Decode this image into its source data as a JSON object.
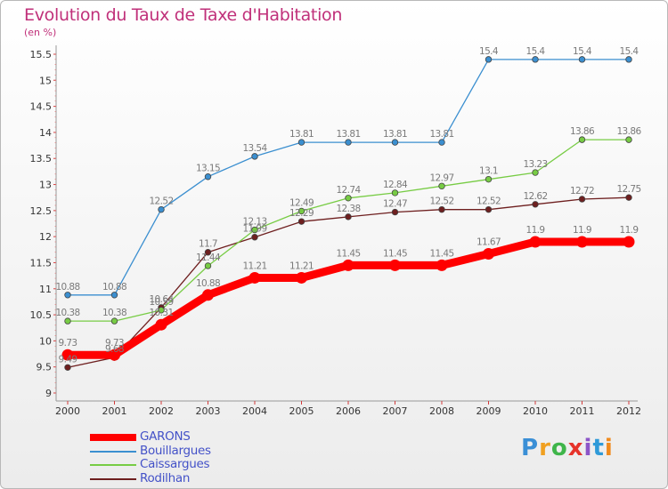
{
  "chart_data": {
    "type": "line",
    "title": "Evolution du Taux de Taxe d'Habitation",
    "subtitle": "(en %)",
    "x": [
      "2000",
      "2001",
      "2002",
      "2003",
      "2004",
      "2005",
      "2006",
      "2007",
      "2008",
      "2009",
      "2010",
      "2011",
      "2012"
    ],
    "ylim": [
      9,
      15.5
    ],
    "yticks": [
      "9",
      "9.5",
      "10",
      "10.5",
      "11",
      "11.5",
      "12",
      "12.5",
      "13",
      "13.5",
      "14",
      "14.5",
      "15",
      "15.5"
    ],
    "grid": false,
    "legend_placement": "bottom-left",
    "series": [
      {
        "name": "GARONS",
        "color": "#ff0000",
        "values": [
          9.73,
          9.73,
          10.31,
          10.88,
          11.21,
          11.21,
          11.45,
          11.45,
          11.45,
          11.67,
          11.9,
          11.9,
          11.9
        ],
        "labels": [
          "9.73",
          "9.73",
          "10.31",
          "10.88",
          "11.21",
          "11.21",
          "11.45",
          "11.45",
          "11.45",
          "11.67",
          "11.9",
          "11.9",
          "11.9"
        ]
      },
      {
        "name": "Bouillargues",
        "color": "#3b8fd0",
        "values": [
          10.88,
          10.88,
          12.52,
          13.15,
          13.54,
          13.81,
          13.81,
          13.81,
          13.81,
          15.4,
          15.4,
          15.4,
          15.4
        ],
        "labels": [
          "10.88",
          "10.88",
          "12.52",
          "13.15",
          "13.54",
          "13.81",
          "13.81",
          "13.81",
          "13.81",
          "15.4",
          "15.4",
          "15.4",
          "15.4"
        ]
      },
      {
        "name": "Caissargues",
        "color": "#77cc44",
        "values": [
          10.38,
          10.38,
          10.59,
          11.44,
          12.13,
          12.49,
          12.74,
          12.84,
          12.97,
          13.1,
          13.23,
          13.86,
          13.86
        ],
        "labels": [
          "10.38",
          "10.38",
          "10.59",
          "11.44",
          "12.13",
          "12.49",
          "12.74",
          "12.84",
          "12.97",
          "13.1",
          "13.23",
          "13.86",
          "13.86"
        ]
      },
      {
        "name": "Rodilhan",
        "color": "#6e1f1f",
        "values": [
          9.49,
          9.68,
          10.64,
          11.7,
          11.99,
          12.29,
          12.38,
          12.47,
          12.52,
          12.52,
          12.62,
          12.72,
          12.75
        ],
        "labels": [
          "9.49",
          "9.68",
          "10.64",
          "11.7",
          "11.99",
          "12.29",
          "12.38",
          "12.47",
          "12.52",
          "12.52",
          "12.62",
          "12.72",
          "12.75"
        ]
      }
    ]
  },
  "logo": {
    "p": "P",
    "r": "r",
    "o": "o",
    "x": "x",
    "i1": "i",
    "t": "t",
    "i2": "i"
  }
}
